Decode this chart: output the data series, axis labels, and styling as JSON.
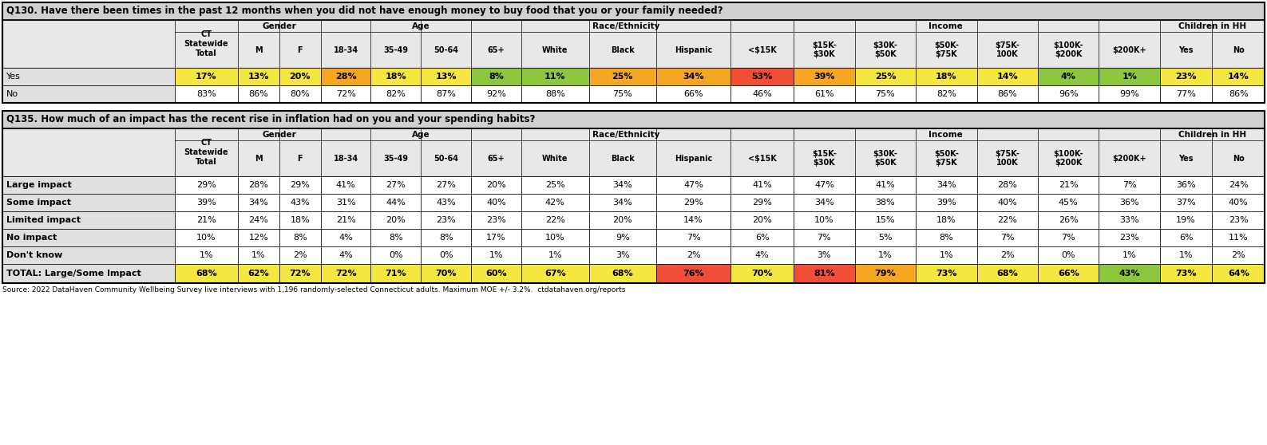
{
  "q130_title": "Q130. Have there been times in the past 12 months when you did not have enough money to buy food that you or your family needed?",
  "q135_title": "Q135. How much of an impact has the recent rise in inflation had on you and your spending habits?",
  "source_text": "Source: 2022 DataHaven Community Wellbeing Survey live interviews with 1,196 randomly-selected Connecticut adults. Maximum MOE +/- 3.2%.  ctdatahaven.org/reports",
  "col_widths_raw": [
    158,
    58,
    38,
    38,
    46,
    46,
    46,
    46,
    62,
    62,
    68,
    58,
    56,
    56,
    56,
    56,
    56,
    56,
    48,
    48
  ],
  "sub_labels": [
    "M",
    "F",
    "18-34",
    "35-49",
    "50-64",
    "65+",
    "White",
    "Black",
    "Hispanic",
    "<$15K",
    "$15K-\n$30K",
    "$30K-\n$50K",
    "$50K-\n$75K",
    "$75K-\n100K",
    "$100K-\n$200K",
    "$200K+",
    "Yes",
    "No"
  ],
  "sub_cols": [
    2,
    3,
    4,
    5,
    6,
    7,
    8,
    9,
    10,
    11,
    12,
    13,
    14,
    15,
    16,
    17,
    18,
    19
  ],
  "q130_rows": [
    {
      "label": "Yes",
      "values": [
        "17%",
        "13%",
        "20%",
        "28%",
        "18%",
        "13%",
        "8%",
        "11%",
        "25%",
        "34%",
        "53%",
        "39%",
        "25%",
        "18%",
        "14%",
        "4%",
        "1%",
        "23%",
        "14%"
      ],
      "colors": [
        "#f5e642",
        "#f5e642",
        "#f5e642",
        "#f5a623",
        "#f5e642",
        "#f5e642",
        "#8dc63f",
        "#8dc63f",
        "#f5a623",
        "#f5a623",
        "#f04e37",
        "#f5a623",
        "#f5e642",
        "#f5e642",
        "#f5e642",
        "#8dc63f",
        "#8dc63f",
        "#f5e642",
        "#f5e642"
      ]
    },
    {
      "label": "No",
      "values": [
        "83%",
        "86%",
        "80%",
        "72%",
        "82%",
        "87%",
        "92%",
        "88%",
        "75%",
        "66%",
        "46%",
        "61%",
        "75%",
        "82%",
        "86%",
        "96%",
        "99%",
        "77%",
        "86%"
      ],
      "colors": [
        "#ffffff",
        "#ffffff",
        "#ffffff",
        "#ffffff",
        "#ffffff",
        "#ffffff",
        "#ffffff",
        "#ffffff",
        "#ffffff",
        "#ffffff",
        "#ffffff",
        "#ffffff",
        "#ffffff",
        "#ffffff",
        "#ffffff",
        "#ffffff",
        "#ffffff",
        "#ffffff",
        "#ffffff"
      ]
    }
  ],
  "q135_rows": [
    {
      "label": "Large impact",
      "values": [
        "29%",
        "28%",
        "29%",
        "41%",
        "27%",
        "27%",
        "20%",
        "25%",
        "34%",
        "47%",
        "41%",
        "47%",
        "41%",
        "34%",
        "28%",
        "21%",
        "7%",
        "36%",
        "24%"
      ],
      "colors": [
        "#ffffff",
        "#ffffff",
        "#ffffff",
        "#ffffff",
        "#ffffff",
        "#ffffff",
        "#ffffff",
        "#ffffff",
        "#ffffff",
        "#ffffff",
        "#ffffff",
        "#ffffff",
        "#ffffff",
        "#ffffff",
        "#ffffff",
        "#ffffff",
        "#ffffff",
        "#ffffff",
        "#ffffff"
      ],
      "bold": false
    },
    {
      "label": "Some impact",
      "values": [
        "39%",
        "34%",
        "43%",
        "31%",
        "44%",
        "43%",
        "40%",
        "42%",
        "34%",
        "29%",
        "29%",
        "34%",
        "38%",
        "39%",
        "40%",
        "45%",
        "36%",
        "37%",
        "40%"
      ],
      "colors": [
        "#ffffff",
        "#ffffff",
        "#ffffff",
        "#ffffff",
        "#ffffff",
        "#ffffff",
        "#ffffff",
        "#ffffff",
        "#ffffff",
        "#ffffff",
        "#ffffff",
        "#ffffff",
        "#ffffff",
        "#ffffff",
        "#ffffff",
        "#ffffff",
        "#ffffff",
        "#ffffff",
        "#ffffff"
      ],
      "bold": false
    },
    {
      "label": "Limited impact",
      "values": [
        "21%",
        "24%",
        "18%",
        "21%",
        "20%",
        "23%",
        "23%",
        "22%",
        "20%",
        "14%",
        "20%",
        "10%",
        "15%",
        "18%",
        "22%",
        "26%",
        "33%",
        "19%",
        "23%"
      ],
      "colors": [
        "#ffffff",
        "#ffffff",
        "#ffffff",
        "#ffffff",
        "#ffffff",
        "#ffffff",
        "#ffffff",
        "#ffffff",
        "#ffffff",
        "#ffffff",
        "#ffffff",
        "#ffffff",
        "#ffffff",
        "#ffffff",
        "#ffffff",
        "#ffffff",
        "#ffffff",
        "#ffffff",
        "#ffffff"
      ],
      "bold": false
    },
    {
      "label": "No impact",
      "values": [
        "10%",
        "12%",
        "8%",
        "4%",
        "8%",
        "8%",
        "17%",
        "10%",
        "9%",
        "7%",
        "6%",
        "7%",
        "5%",
        "8%",
        "7%",
        "7%",
        "23%",
        "6%",
        "11%"
      ],
      "colors": [
        "#ffffff",
        "#ffffff",
        "#ffffff",
        "#ffffff",
        "#ffffff",
        "#ffffff",
        "#ffffff",
        "#ffffff",
        "#ffffff",
        "#ffffff",
        "#ffffff",
        "#ffffff",
        "#ffffff",
        "#ffffff",
        "#ffffff",
        "#ffffff",
        "#ffffff",
        "#ffffff",
        "#ffffff"
      ],
      "bold": false
    },
    {
      "label": "Don't know",
      "values": [
        "1%",
        "1%",
        "2%",
        "4%",
        "0%",
        "0%",
        "1%",
        "1%",
        "3%",
        "2%",
        "4%",
        "3%",
        "1%",
        "1%",
        "2%",
        "0%",
        "1%",
        "1%",
        "2%"
      ],
      "colors": [
        "#ffffff",
        "#ffffff",
        "#ffffff",
        "#ffffff",
        "#ffffff",
        "#ffffff",
        "#ffffff",
        "#ffffff",
        "#ffffff",
        "#ffffff",
        "#ffffff",
        "#ffffff",
        "#ffffff",
        "#ffffff",
        "#ffffff",
        "#ffffff",
        "#ffffff",
        "#ffffff",
        "#ffffff"
      ],
      "bold": false
    },
    {
      "label": "TOTAL: Large/Some Impact",
      "values": [
        "68%",
        "62%",
        "72%",
        "72%",
        "71%",
        "70%",
        "60%",
        "67%",
        "68%",
        "76%",
        "70%",
        "81%",
        "79%",
        "73%",
        "68%",
        "66%",
        "43%",
        "73%",
        "64%"
      ],
      "colors": [
        "#f5e642",
        "#f5e642",
        "#f5e642",
        "#f5e642",
        "#f5e642",
        "#f5e642",
        "#f5e642",
        "#f5e642",
        "#f5e642",
        "#f04e37",
        "#f5e642",
        "#f04e37",
        "#f5a623",
        "#f5e642",
        "#f5e642",
        "#f5e642",
        "#8dc63f",
        "#f5e642",
        "#f5e642"
      ],
      "bold": true
    }
  ],
  "header_bg": "#e8e8e8",
  "row_label_bg": "#e0e0e0",
  "title_bg": "#d0d0d0",
  "white": "#ffffff"
}
